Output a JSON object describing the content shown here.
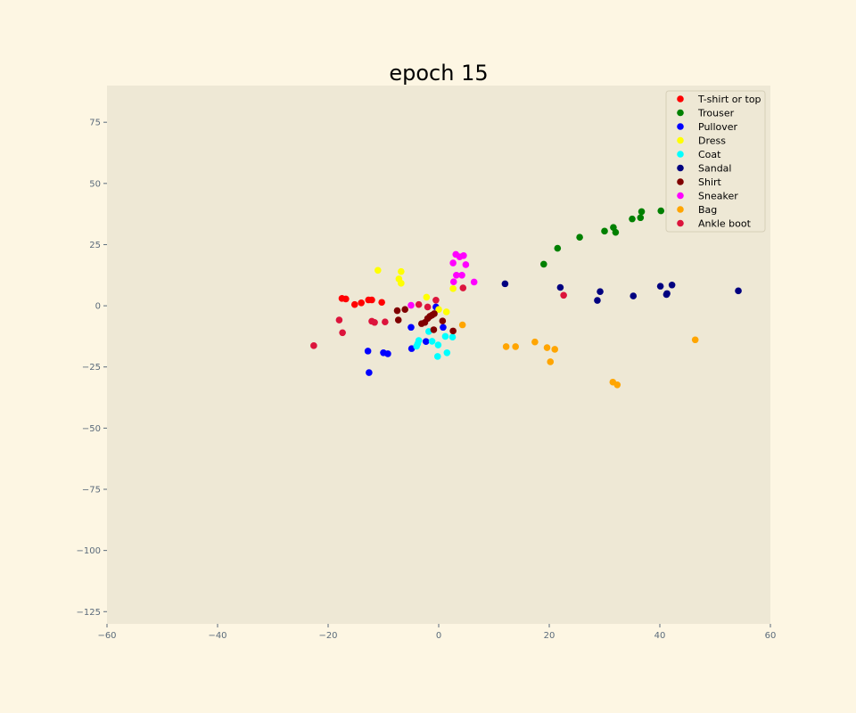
{
  "colors": {
    "figure_bg": "#fdf6e3",
    "plot_bg": "#eee8d5",
    "tick_color": "#5b6b7b"
  },
  "chart_data": {
    "type": "scatter",
    "title": "epoch 15",
    "xlabel": "",
    "ylabel": "",
    "xlim": [
      -60,
      60
    ],
    "ylim": [
      -130,
      90
    ],
    "xticks": [
      -60,
      -40,
      -20,
      0,
      20,
      40,
      60
    ],
    "yticks": [
      75,
      50,
      25,
      0,
      -25,
      -50,
      -75,
      -100,
      -125
    ],
    "grid": false,
    "legend_position": "top-right",
    "series": [
      {
        "name": "T-shirt or top",
        "color": "#ff0000",
        "points": [
          [
            -17.5,
            3.0
          ],
          [
            -16.8,
            2.8
          ],
          [
            -15.2,
            0.5
          ],
          [
            -14,
            1.2
          ],
          [
            -12.7,
            2.4
          ],
          [
            -12.1,
            2.4
          ],
          [
            -10.3,
            1.4
          ]
        ]
      },
      {
        "name": "Trouser",
        "color": "#008000",
        "points": [
          [
            19,
            17
          ],
          [
            21.5,
            23.5
          ],
          [
            25.5,
            28
          ],
          [
            30,
            30.5
          ],
          [
            31.6,
            32
          ],
          [
            32,
            30
          ],
          [
            35,
            35.5
          ],
          [
            36.5,
            36
          ],
          [
            36.7,
            38.5
          ],
          [
            40.2,
            38.8
          ]
        ]
      },
      {
        "name": "Pullover",
        "color": "#0000ff",
        "points": [
          [
            -12.8,
            -18.5
          ],
          [
            -12.6,
            -27.3
          ],
          [
            -10,
            -19.2
          ],
          [
            -9.2,
            -19.6
          ],
          [
            -5,
            -8.8
          ],
          [
            -4.9,
            -17.5
          ],
          [
            -2.3,
            -14.6
          ],
          [
            0.8,
            -8.8
          ],
          [
            -0.5,
            -0.5
          ]
        ]
      },
      {
        "name": "Dress",
        "color": "#ffff00",
        "points": [
          [
            -11,
            14.5
          ],
          [
            -6.8,
            14
          ],
          [
            -7.2,
            11
          ],
          [
            -6.8,
            9.2
          ],
          [
            -2.2,
            3.5
          ],
          [
            0,
            -1.5
          ],
          [
            1.4,
            -2.5
          ],
          [
            2.6,
            7
          ]
        ]
      },
      {
        "name": "Coat",
        "color": "#00ffff",
        "points": [
          [
            -3.6,
            -14.2
          ],
          [
            -4,
            -16.5
          ],
          [
            -3.8,
            -15.5
          ],
          [
            -1.8,
            -10.5
          ],
          [
            -1.2,
            -14.5
          ],
          [
            -0.1,
            -16
          ],
          [
            -0.2,
            -20.7
          ],
          [
            1.2,
            -12.5
          ],
          [
            1.5,
            -19.2
          ],
          [
            2.5,
            -12.8
          ]
        ]
      },
      {
        "name": "Sandal",
        "color": "#000080",
        "points": [
          [
            12,
            9
          ],
          [
            22,
            7.5
          ],
          [
            28.7,
            2.2
          ],
          [
            29.2,
            5.8
          ],
          [
            35.2,
            4
          ],
          [
            40.1,
            8
          ],
          [
            41.3,
            5
          ],
          [
            42.2,
            8.5
          ],
          [
            54.2,
            6.1
          ],
          [
            41.2,
            4.6
          ]
        ]
      },
      {
        "name": "Shirt",
        "color": "#800000",
        "points": [
          [
            -7.5,
            -2
          ],
          [
            -7.3,
            -5.8
          ],
          [
            -6.1,
            -1.5
          ],
          [
            -3.1,
            -7.3
          ],
          [
            -2.5,
            -6.8
          ],
          [
            -2,
            -5.2
          ],
          [
            -1.6,
            -4.3
          ],
          [
            -1.2,
            -3.8
          ],
          [
            -0.8,
            -3.2
          ],
          [
            -0.9,
            -9.8
          ],
          [
            0.7,
            -6.2
          ],
          [
            2.6,
            -10.3
          ]
        ]
      },
      {
        "name": "Sneaker",
        "color": "#ff00ff",
        "points": [
          [
            -5,
            0.2
          ],
          [
            2.6,
            17.5
          ],
          [
            3.1,
            21
          ],
          [
            3.8,
            20
          ],
          [
            4.5,
            20.5
          ],
          [
            4.9,
            16.8
          ],
          [
            3.2,
            12.5
          ],
          [
            4.2,
            12.5
          ],
          [
            2.7,
            9.8
          ],
          [
            6.4,
            9.7
          ]
        ]
      },
      {
        "name": "Bag",
        "color": "#ffa500",
        "points": [
          [
            4.3,
            -7.8
          ],
          [
            12.2,
            -16.7
          ],
          [
            13.9,
            -16.7
          ],
          [
            17.4,
            -14.8
          ],
          [
            19.6,
            -17.1
          ],
          [
            20.2,
            -22.9
          ],
          [
            21,
            -17.8
          ],
          [
            31.5,
            -31.2
          ],
          [
            32.3,
            -32.3
          ],
          [
            46.4,
            -13.9
          ]
        ]
      },
      {
        "name": "Ankle boot",
        "color": "#dc143c",
        "points": [
          [
            -22.6,
            -16.3
          ],
          [
            -18,
            -5.8
          ],
          [
            -17.4,
            -11
          ],
          [
            -12.1,
            -6.3
          ],
          [
            -11.6,
            -6.8
          ],
          [
            -9.7,
            -6.6
          ],
          [
            -3.6,
            0.5
          ],
          [
            -2,
            -0.5
          ],
          [
            -0.5,
            2.3
          ],
          [
            4.4,
            7.3
          ],
          [
            22.6,
            4.3
          ]
        ]
      }
    ]
  }
}
